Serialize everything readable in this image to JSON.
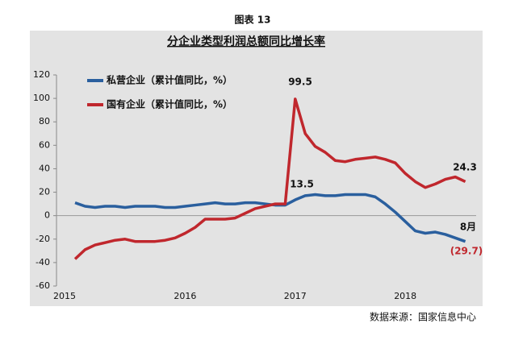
{
  "header": "图表 13",
  "source": "数据来源：国家信息中心",
  "chart_data": {
    "type": "line",
    "title": "分企业类型利润总额同比增长率",
    "categories": [
      "2015",
      null,
      null,
      null,
      null,
      null,
      null,
      null,
      null,
      null,
      null,
      "2016",
      null,
      null,
      null,
      null,
      null,
      null,
      null,
      null,
      null,
      null,
      "2017",
      null,
      null,
      null,
      null,
      null,
      null,
      null,
      null,
      null,
      null,
      "2018",
      null,
      null,
      null,
      null,
      null,
      null
    ],
    "series": [
      {
        "name": "私营企业（累计值同比，%）",
        "color": "#2a5f9e",
        "values": [
          11,
          8,
          7,
          8,
          8,
          7,
          8,
          8,
          8,
          7,
          7,
          8,
          9,
          10,
          11,
          10,
          10,
          11,
          11,
          10,
          9,
          9,
          13.5,
          17,
          18,
          17,
          17,
          18,
          18,
          18,
          16,
          10,
          3,
          -5,
          -13,
          -15,
          -14,
          -16,
          -19,
          -22
        ]
      },
      {
        "name": "国有企业（累计值同比，%）",
        "color": "#c0272d",
        "values": [
          -37,
          -29,
          -25,
          -23,
          -21,
          -20,
          -22,
          -22,
          -22,
          -21,
          -19,
          -15,
          -10,
          -3,
          -3,
          -3,
          -2,
          2,
          6,
          8,
          10,
          10,
          99.5,
          70,
          59,
          54,
          47,
          46,
          48,
          49,
          50,
          48,
          45,
          36,
          29,
          24,
          27,
          31,
          33,
          29
        ]
      }
    ],
    "annotations": [
      "99.5",
      "13.5",
      "24.3",
      "8月",
      "(29.7)"
    ],
    "ylim": [
      -60,
      120
    ],
    "yticks": [
      -60,
      -40,
      -20,
      0,
      20,
      40,
      60,
      80,
      100,
      120
    ]
  }
}
